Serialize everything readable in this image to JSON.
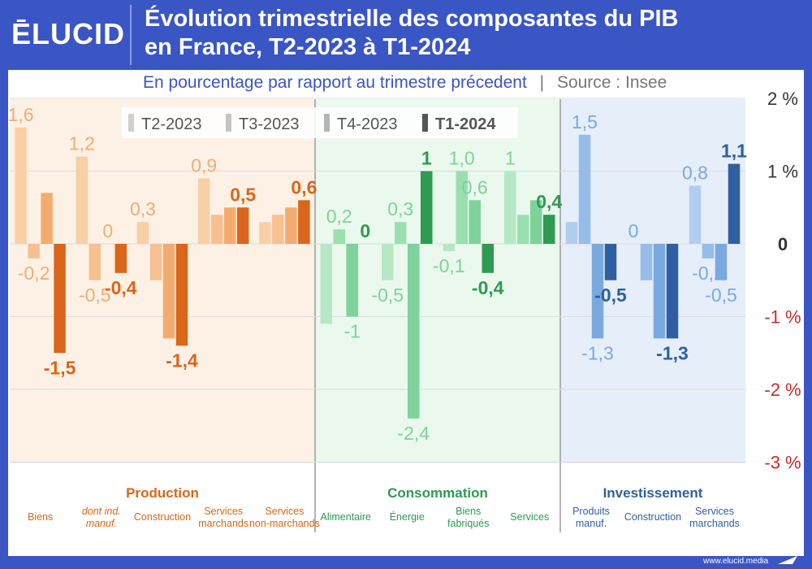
{
  "brand": {
    "logo_text": "ĒLUCID",
    "footer_url": "www.elucid.media"
  },
  "header": {
    "title_line1": "Évolution trimestrielle des composantes du PIB",
    "title_line2": "en France, T2-2023 à T1-2024"
  },
  "subtitle": {
    "text": "En pourcentage par rapport au trimestre précedent",
    "separator": "|",
    "source": "Source : Insee"
  },
  "colors": {
    "production": [
      "#f9cfa5",
      "#f7c090",
      "#f3ac70",
      "#d9661a"
    ],
    "consommation": [
      "#b6e8c6",
      "#9adfb0",
      "#7dd39a",
      "#2f9a52"
    ],
    "investissement": [
      "#b0cdef",
      "#96bce9",
      "#7aa9e0",
      "#2f5fa0"
    ],
    "label_production": "#d9661a",
    "label_consommation": "#2f9a52",
    "label_investissement": "#2f5fa0",
    "negative_tick": "#cc2a2a"
  },
  "chart_data": {
    "type": "bar",
    "title": "Évolution trimestrielle des composantes du PIB en France, T2-2023 à T1-2024",
    "ylabel": "En pourcentage par rapport au trimestre précedent",
    "ylim": [
      -3,
      2
    ],
    "yticks": [
      {
        "value": 2,
        "label": "2 %"
      },
      {
        "value": 1,
        "label": "1 %"
      },
      {
        "value": 0,
        "label": "0"
      },
      {
        "value": -1,
        "label": "-1 %"
      },
      {
        "value": -2,
        "label": "-2 %"
      },
      {
        "value": -3,
        "label": "-3 %"
      }
    ],
    "legend": {
      "position": "top",
      "entries": [
        "T2-2023",
        "T3-2023",
        "T4-2023",
        "T1-2024"
      ]
    },
    "series_names": [
      "T2-2023",
      "T3-2023",
      "T4-2023",
      "T1-2024"
    ],
    "groups": [
      {
        "name": "Production",
        "color_key": "production",
        "categories": [
          {
            "label": "Biens",
            "values": [
              1.6,
              -0.2,
              0.7,
              -1.5
            ],
            "labels": [
              "1,6",
              "-0,2",
              "",
              "-1,5"
            ]
          },
          {
            "label": "dont ind. manuf.",
            "italic": true,
            "values": [
              1.2,
              -0.5,
              0.0,
              -0.4
            ],
            "labels": [
              "1,2",
              "-0,5",
              "0",
              "-0,4"
            ]
          },
          {
            "label": "Construction",
            "values": [
              0.3,
              -0.5,
              -1.3,
              -1.4
            ],
            "labels": [
              "0,3",
              "",
              "",
              "-1,4"
            ]
          },
          {
            "label": "Services marchands",
            "values": [
              0.9,
              0.4,
              0.5,
              0.5
            ],
            "labels": [
              "0,9",
              "",
              "",
              "0,5"
            ]
          },
          {
            "label": "Services non-marchands",
            "values": [
              0.3,
              0.4,
              0.5,
              0.6
            ],
            "labels": [
              "",
              "",
              "",
              "0,6"
            ]
          }
        ]
      },
      {
        "name": "Consommation",
        "color_key": "consommation",
        "categories": [
          {
            "label": "Alimentaire",
            "values": [
              -1.1,
              0.2,
              -1.0,
              0.0
            ],
            "labels": [
              "",
              "0,2",
              "-1",
              "0"
            ]
          },
          {
            "label": "Énergie",
            "values": [
              -0.5,
              0.3,
              -2.4,
              1.0
            ],
            "labels": [
              "-0,5",
              "0,3",
              "-2,4",
              "1"
            ]
          },
          {
            "label": "Biens fabriqués",
            "values": [
              -0.1,
              1.0,
              0.6,
              -0.4
            ],
            "labels": [
              "-0,1",
              "1,0",
              "0,6",
              "-0,4"
            ]
          },
          {
            "label": "Services",
            "values": [
              1.0,
              0.4,
              0.6,
              0.4
            ],
            "labels": [
              "1",
              "",
              "",
              "0,4"
            ]
          }
        ]
      },
      {
        "name": "Investissement",
        "color_key": "investissement",
        "categories": [
          {
            "label": "Produits manuf.",
            "values": [
              0.3,
              1.5,
              -1.3,
              -0.5
            ],
            "labels": [
              "",
              "1,5",
              "-1,3",
              "-0,5"
            ]
          },
          {
            "label": "Construction",
            "values": [
              0.0,
              -0.5,
              -1.3,
              -1.3
            ],
            "labels": [
              "0",
              "",
              "",
              "-1,3"
            ]
          },
          {
            "label": "Services marchands",
            "values": [
              0.8,
              -0.2,
              -0.5,
              1.1
            ],
            "labels": [
              "0,8",
              "-0,2",
              "-0,5",
              "1,1"
            ]
          }
        ]
      }
    ]
  }
}
